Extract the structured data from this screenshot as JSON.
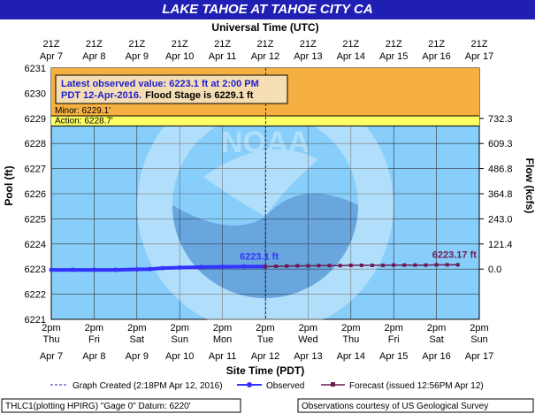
{
  "title": "LAKE TAHOE AT TAHOE CITY CA",
  "top_axis_title": "Universal Time (UTC)",
  "bottom_axis_title": "Site Time (PDT)",
  "left_axis_title": "Pool (ft)",
  "right_axis_title": "Flow (kcfs)",
  "info_box": {
    "line1": "Latest observed value: 6223.1 ft at 2:00 PM",
    "line2_date": "PDT 12-Apr-2016.",
    "line2_flood": "Flood Stage is 6229.1 ft"
  },
  "thresholds": {
    "minor_label": "Minor: 6229.1'",
    "action_label": "Action: 6228.7'"
  },
  "observed_label": "6223.1 ft",
  "forecast_label": "6223.17 ft",
  "legend": {
    "created": "Graph Created (2:18PM Apr 12, 2016)",
    "observed": "Observed",
    "forecast": "Forecast (issued 12:56PM Apr 12)"
  },
  "footer_left": "THLC1(plotting HPIRG) \"Gage 0\" Datum: 6220'",
  "footer_right": "Observations courtesy of US Geological Survey",
  "colors": {
    "banner": "#1f1fb4",
    "plot_bg": "#87cefa",
    "flood_zone": "#f5b041",
    "action_zone": "#ffff66",
    "observed": "#3333ff",
    "forecast": "#6b1a52",
    "grid": "#333333"
  },
  "chart_data": {
    "type": "line",
    "title": "LAKE TAHOE AT TAHOE CITY CA",
    "ylabel": "Pool (ft)",
    "y2label": "Flow (kcfs)",
    "xlabel": "Site Time (PDT)",
    "ylim": [
      6221,
      6231
    ],
    "yticks": [
      6221,
      6222,
      6223,
      6224,
      6225,
      6226,
      6227,
      6228,
      6229,
      6230,
      6231
    ],
    "y2_ticks": [
      {
        "stage": 6223,
        "label": "0.0"
      },
      {
        "stage": 6224,
        "label": "121.4"
      },
      {
        "stage": 6225,
        "label": "243.0"
      },
      {
        "stage": 6226,
        "label": "364.8"
      },
      {
        "stage": 6227,
        "label": "486.8"
      },
      {
        "stage": 6228,
        "label": "609.3"
      },
      {
        "stage": 6229,
        "label": "732.3"
      }
    ],
    "x_days_bottom": [
      {
        "t": "2pm",
        "d": "Thu",
        "m": "Apr 7"
      },
      {
        "t": "2pm",
        "d": "Fri",
        "m": "Apr 8"
      },
      {
        "t": "2pm",
        "d": "Sat",
        "m": "Apr 9"
      },
      {
        "t": "2pm",
        "d": "Sun",
        "m": "Apr 10"
      },
      {
        "t": "2pm",
        "d": "Mon",
        "m": "Apr 11"
      },
      {
        "t": "2pm",
        "d": "Tue",
        "m": "Apr 12"
      },
      {
        "t": "2pm",
        "d": "Wed",
        "m": "Apr 13"
      },
      {
        "t": "2pm",
        "d": "Thu",
        "m": "Apr 14"
      },
      {
        "t": "2pm",
        "d": "Fri",
        "m": "Apr 15"
      },
      {
        "t": "2pm",
        "d": "Sat",
        "m": "Apr 16"
      },
      {
        "t": "2pm",
        "d": "Sun",
        "m": "Apr 17"
      }
    ],
    "x_days_top": [
      {
        "t": "21Z",
        "m": "Apr 7"
      },
      {
        "t": "21Z",
        "m": "Apr 8"
      },
      {
        "t": "21Z",
        "m": "Apr 9"
      },
      {
        "t": "21Z",
        "m": "Apr 10"
      },
      {
        "t": "21Z",
        "m": "Apr 11"
      },
      {
        "t": "21Z",
        "m": "Apr 12"
      },
      {
        "t": "21Z",
        "m": "Apr 13"
      },
      {
        "t": "21Z",
        "m": "Apr 14"
      },
      {
        "t": "21Z",
        "m": "Apr 15"
      },
      {
        "t": "21Z",
        "m": "Apr 16"
      },
      {
        "t": "21Z",
        "m": "Apr 17"
      }
    ],
    "flood_stage": 6229.1,
    "action_stage": 6228.7,
    "created_day": 5.01,
    "series": [
      {
        "name": "Observed",
        "type": "observed",
        "points": [
          [
            0.0,
            6222.97
          ],
          [
            0.5,
            6222.97
          ],
          [
            1.0,
            6222.97
          ],
          [
            1.5,
            6222.97
          ],
          [
            2.0,
            6222.99
          ],
          [
            2.3,
            6223.0
          ],
          [
            2.6,
            6223.04
          ],
          [
            3.0,
            6223.06
          ],
          [
            3.5,
            6223.08
          ],
          [
            4.0,
            6223.09
          ],
          [
            4.5,
            6223.1
          ],
          [
            5.0,
            6223.1
          ]
        ]
      },
      {
        "name": "Forecast",
        "type": "forecast",
        "points": [
          [
            5.0,
            6223.1
          ],
          [
            5.25,
            6223.11
          ],
          [
            5.5,
            6223.12
          ],
          [
            5.75,
            6223.13
          ],
          [
            6.0,
            6223.13
          ],
          [
            6.25,
            6223.14
          ],
          [
            6.5,
            6223.14
          ],
          [
            6.75,
            6223.14
          ],
          [
            7.0,
            6223.15
          ],
          [
            7.25,
            6223.15
          ],
          [
            7.5,
            6223.15
          ],
          [
            7.75,
            6223.15
          ],
          [
            8.0,
            6223.16
          ],
          [
            8.25,
            6223.16
          ],
          [
            8.5,
            6223.16
          ],
          [
            8.75,
            6223.16
          ],
          [
            9.0,
            6223.17
          ],
          [
            9.25,
            6223.17
          ],
          [
            9.5,
            6223.17
          ]
        ]
      }
    ]
  }
}
